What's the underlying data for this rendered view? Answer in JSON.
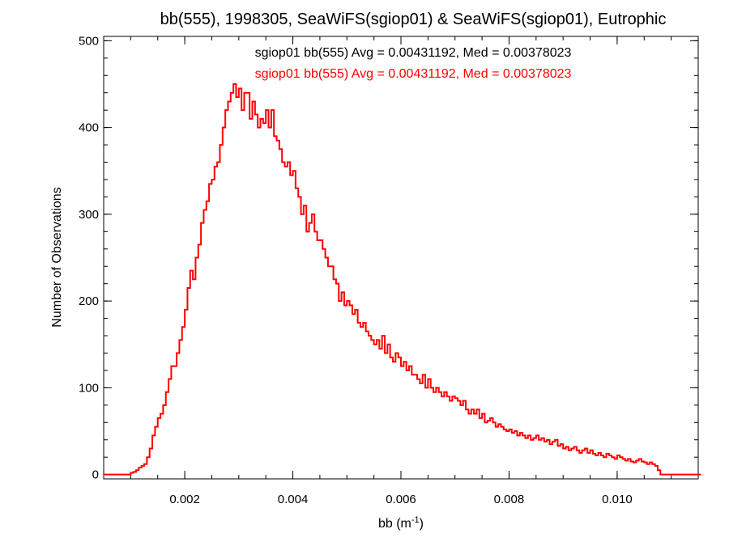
{
  "chart_data": {
    "type": "line",
    "title": "bb(555), 1998305, SeaWiFS(sgiop01) & SeaWiFS(sgiop01), Eutrophic",
    "xlabel_base": "bb (m",
    "xlabel_sup": "-1",
    "xlabel_close": ")",
    "ylabel": "Number of Observations",
    "xlim": [
      0.0005,
      0.0115
    ],
    "ylim": [
      -5,
      505
    ],
    "x_ticks": [
      "0.002",
      "0.004",
      "0.006",
      "0.008",
      "0.010"
    ],
    "x_tick_values": [
      0.002,
      0.004,
      0.006,
      0.008,
      0.01
    ],
    "y_ticks": [
      "0",
      "100",
      "200",
      "300",
      "400",
      "500"
    ],
    "y_tick_values": [
      0,
      100,
      200,
      300,
      400,
      500
    ],
    "grid": false,
    "histogram": {
      "bin_start": 0.0005,
      "bin_width": 5e-05,
      "counts": [
        0,
        0,
        0,
        0,
        0,
        0,
        0,
        0,
        0,
        0,
        2,
        3,
        5,
        8,
        10,
        12,
        20,
        30,
        45,
        55,
        65,
        70,
        80,
        95,
        110,
        125,
        125,
        140,
        155,
        170,
        190,
        215,
        235,
        225,
        250,
        265,
        290,
        305,
        315,
        335,
        340,
        355,
        360,
        380,
        400,
        420,
        430,
        440,
        450,
        435,
        445,
        420,
        440,
        440,
        410,
        430,
        415,
        400,
        410,
        405,
        420,
        400,
        420,
        390,
        385,
        375,
        360,
        355,
        360,
        345,
        350,
        330,
        320,
        300,
        310,
        280,
        290,
        300,
        280,
        270,
        270,
        260,
        250,
        240,
        240,
        225,
        220,
        200,
        210,
        195,
        200,
        195,
        185,
        190,
        175,
        170,
        175,
        165,
        160,
        155,
        150,
        155,
        145,
        160,
        140,
        150,
        135,
        130,
        140,
        135,
        125,
        130,
        120,
        125,
        115,
        115,
        110,
        105,
        115,
        100,
        110,
        100,
        95,
        100,
        95,
        90,
        95,
        90,
        85,
        90,
        88,
        85,
        80,
        85,
        75,
        70,
        75,
        70,
        75,
        65,
        70,
        60,
        62,
        65,
        60,
        55,
        58,
        55,
        52,
        50,
        52,
        48,
        50,
        45,
        48,
        45,
        42,
        45,
        40,
        42,
        45,
        40,
        42,
        38,
        40,
        35,
        38,
        40,
        33,
        35,
        30,
        32,
        28,
        30,
        32,
        28,
        25,
        28,
        30,
        25,
        28,
        24,
        22,
        25,
        22,
        20,
        24,
        22,
        20,
        18,
        22,
        20,
        18,
        16,
        18,
        15,
        14,
        16,
        18,
        15,
        14,
        12,
        14,
        12,
        10,
        5,
        0,
        0,
        0,
        0,
        0,
        0,
        0,
        0,
        0,
        0,
        0,
        0,
        0,
        0,
        0
      ],
      "color": "#ff0000"
    },
    "annotations": [
      {
        "text": "sgiop01 bb(555) Avg = 0.00431192, Med = 0.00378023",
        "color": "#000000"
      },
      {
        "text": "sgiop01 bb(555) Avg = 0.00431192, Med = 0.00378023",
        "color": "#ff0000"
      }
    ]
  }
}
